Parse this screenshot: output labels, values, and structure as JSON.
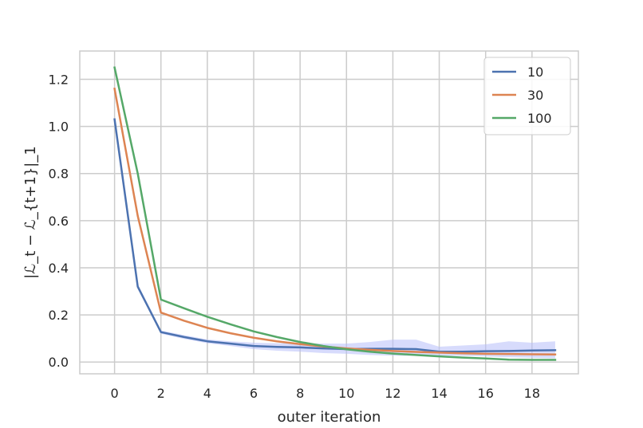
{
  "chart_data": {
    "type": "line",
    "xlabel": "outer iteration",
    "ylabel": "|ℒ_t − ℒ_{t+1}|_1",
    "xlim": [
      -1.5,
      20.0
    ],
    "ylim": [
      -0.05,
      1.32
    ],
    "xticks": [
      0,
      2,
      4,
      6,
      8,
      10,
      12,
      14,
      16,
      18
    ],
    "yticks": [
      "0.0",
      "0.2",
      "0.4",
      "0.6",
      "0.8",
      "1.0",
      "1.2"
    ],
    "grid": true,
    "legend_position": "top-right",
    "x": [
      0,
      1,
      2,
      3,
      4,
      5,
      6,
      7,
      8,
      9,
      10,
      11,
      12,
      13,
      14,
      15,
      16,
      17,
      18,
      19
    ],
    "series": [
      {
        "name": "10",
        "color": "#4c72b0",
        "values": [
          1.03,
          0.32,
          0.127,
          0.106,
          0.088,
          0.078,
          0.068,
          0.064,
          0.062,
          0.058,
          0.055,
          0.056,
          0.056,
          0.055,
          0.044,
          0.044,
          0.046,
          0.047,
          0.049,
          0.05
        ],
        "lower": [
          1.02,
          0.31,
          0.12,
          0.098,
          0.08,
          0.068,
          0.055,
          0.048,
          0.044,
          0.038,
          0.035,
          0.03,
          0.027,
          0.026,
          0.028,
          0.026,
          0.024,
          0.02,
          0.018,
          0.016
        ],
        "upper": [
          1.04,
          0.33,
          0.134,
          0.114,
          0.096,
          0.088,
          0.082,
          0.08,
          0.08,
          0.078,
          0.078,
          0.085,
          0.095,
          0.095,
          0.065,
          0.07,
          0.075,
          0.088,
          0.082,
          0.088
        ]
      },
      {
        "name": "30",
        "color": "#dd8452",
        "values": [
          1.16,
          0.62,
          0.21,
          0.175,
          0.145,
          0.122,
          0.103,
          0.088,
          0.076,
          0.066,
          0.058,
          0.052,
          0.047,
          0.043,
          0.04,
          0.037,
          0.035,
          0.034,
          0.033,
          0.032
        ]
      },
      {
        "name": "100",
        "color": "#55a868",
        "values": [
          1.25,
          0.8,
          0.265,
          0.228,
          0.192,
          0.16,
          0.13,
          0.106,
          0.085,
          0.068,
          0.054,
          0.044,
          0.036,
          0.03,
          0.024,
          0.019,
          0.015,
          0.01,
          0.009,
          0.009
        ]
      }
    ],
    "band_color": "#b6bdfa"
  }
}
